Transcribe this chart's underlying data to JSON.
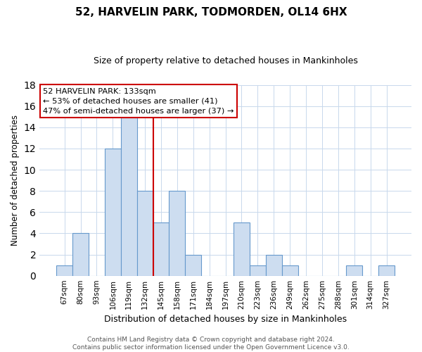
{
  "title": "52, HARVELIN PARK, TODMORDEN, OL14 6HX",
  "subtitle": "Size of property relative to detached houses in Mankinholes",
  "xlabel": "Distribution of detached houses by size in Mankinholes",
  "ylabel": "Number of detached properties",
  "bar_labels": [
    "67sqm",
    "80sqm",
    "93sqm",
    "106sqm",
    "119sqm",
    "132sqm",
    "145sqm",
    "158sqm",
    "171sqm",
    "184sqm",
    "197sqm",
    "210sqm",
    "223sqm",
    "236sqm",
    "249sqm",
    "262sqm",
    "275sqm",
    "288sqm",
    "301sqm",
    "314sqm",
    "327sqm"
  ],
  "bar_values": [
    1,
    4,
    0,
    12,
    15,
    8,
    5,
    8,
    2,
    0,
    0,
    5,
    1,
    2,
    1,
    0,
    0,
    0,
    1,
    0,
    1
  ],
  "bar_color": "#cdddf0",
  "bar_edge_color": "#6699cc",
  "vline_x": 5.5,
  "vline_color": "#cc0000",
  "annotation_title": "52 HARVELIN PARK: 133sqm",
  "annotation_line1": "← 53% of detached houses are smaller (41)",
  "annotation_line2": "47% of semi-detached houses are larger (37) →",
  "annotation_box_facecolor": "#ffffff",
  "annotation_box_edgecolor": "#cc0000",
  "ylim": [
    0,
    18
  ],
  "yticks": [
    0,
    2,
    4,
    6,
    8,
    10,
    12,
    14,
    16,
    18
  ],
  "footer_line1": "Contains HM Land Registry data © Crown copyright and database right 2024.",
  "footer_line2": "Contains public sector information licensed under the Open Government Licence v3.0.",
  "background_color": "#ffffff",
  "grid_color": "#c8d8ec"
}
